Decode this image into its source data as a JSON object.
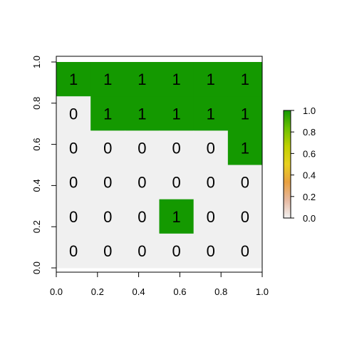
{
  "chart_data": {
    "type": "heatmap",
    "title": "",
    "xlabel": "",
    "ylabel": "",
    "xlim": [
      0,
      1
    ],
    "ylim": [
      0,
      1
    ],
    "x_ticks": [
      "0.0",
      "0.2",
      "0.4",
      "0.6",
      "0.8",
      "1.0"
    ],
    "y_ticks": [
      "0.0",
      "0.2",
      "0.4",
      "0.6",
      "0.8",
      "1.0"
    ],
    "grid": false,
    "rows_top_to_bottom": [
      [
        1,
        1,
        1,
        1,
        1,
        1
      ],
      [
        0,
        1,
        1,
        1,
        1,
        1
      ],
      [
        0,
        0,
        0,
        0,
        0,
        1
      ],
      [
        0,
        0,
        0,
        0,
        0,
        0
      ],
      [
        0,
        0,
        0,
        1,
        0,
        0
      ],
      [
        0,
        0,
        0,
        0,
        0,
        0
      ]
    ],
    "color_scale": {
      "low_color": "#f0f0f0",
      "high_color": "#149900",
      "gradient_stops": [
        "#f2f2f2",
        "#e6b8a0",
        "#e8a040",
        "#e8d020",
        "#c0d000",
        "#6cc000",
        "#149900"
      ],
      "ticks": [
        "0.0",
        "0.2",
        "0.4",
        "0.6",
        "0.8",
        "1.0"
      ],
      "placement": "right"
    }
  }
}
